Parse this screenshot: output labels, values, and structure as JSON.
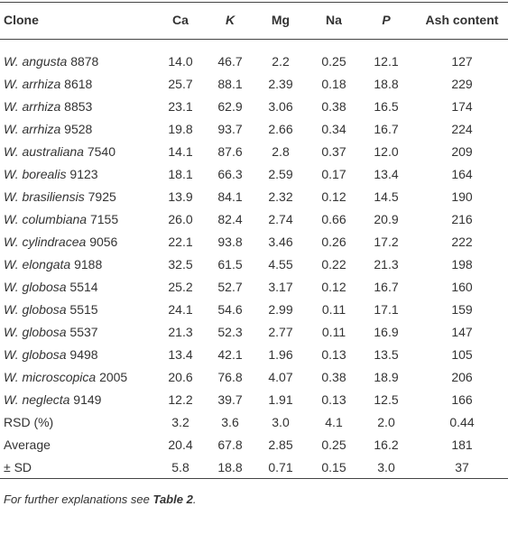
{
  "table": {
    "header": [
      "Clone",
      "Ca",
      "K",
      "Mg",
      "Na",
      "P",
      "Ash content"
    ],
    "rows": [
      {
        "species": "W. angusta",
        "id": "8878",
        "values": [
          "14.0",
          "46.7",
          "2.2",
          "0.25",
          "12.1",
          "127"
        ]
      },
      {
        "species": "W. arrhiza",
        "id": "8618",
        "values": [
          "25.7",
          "88.1",
          "2.39",
          "0.18",
          "18.8",
          "229"
        ]
      },
      {
        "species": "W. arrhiza",
        "id": "8853",
        "values": [
          "23.1",
          "62.9",
          "3.06",
          "0.38",
          "16.5",
          "174"
        ]
      },
      {
        "species": "W. arrhiza",
        "id": "9528",
        "values": [
          "19.8",
          "93.7",
          "2.66",
          "0.34",
          "16.7",
          "224"
        ]
      },
      {
        "species": "W. australiana",
        "id": "7540",
        "values": [
          "14.1",
          "87.6",
          "2.8",
          "0.37",
          "12.0",
          "209"
        ]
      },
      {
        "species": "W. borealis",
        "id": "9123",
        "values": [
          "18.1",
          "66.3",
          "2.59",
          "0.17",
          "13.4",
          "164"
        ]
      },
      {
        "species": "W. brasiliensis",
        "id": "7925",
        "values": [
          "13.9",
          "84.1",
          "2.32",
          "0.12",
          "14.5",
          "190"
        ]
      },
      {
        "species": "W. columbiana",
        "id": "7155",
        "values": [
          "26.0",
          "82.4",
          "2.74",
          "0.66",
          "20.9",
          "216"
        ]
      },
      {
        "species": "W. cylindracea",
        "id": "9056",
        "values": [
          "22.1",
          "93.8",
          "3.46",
          "0.26",
          "17.2",
          "222"
        ]
      },
      {
        "species": "W. elongata",
        "id": "9188",
        "values": [
          "32.5",
          "61.5",
          "4.55",
          "0.22",
          "21.3",
          "198"
        ]
      },
      {
        "species": "W. globosa",
        "id": "5514",
        "values": [
          "25.2",
          "52.7",
          "3.17",
          "0.12",
          "16.7",
          "160"
        ]
      },
      {
        "species": "W. globosa",
        "id": "5515",
        "values": [
          "24.1",
          "54.6",
          "2.99",
          "0.11",
          "17.1",
          "159"
        ]
      },
      {
        "species": "W. globosa",
        "id": "5537",
        "values": [
          "21.3",
          "52.3",
          "2.77",
          "0.11",
          "16.9",
          "147"
        ]
      },
      {
        "species": "W. globosa",
        "id": "9498",
        "values": [
          "13.4",
          "42.1",
          "1.96",
          "0.13",
          "13.5",
          "105"
        ]
      },
      {
        "species": "W. microscopica",
        "id": "2005",
        "values": [
          "20.6",
          "76.8",
          "4.07",
          "0.38",
          "18.9",
          "206"
        ]
      },
      {
        "species": "W. neglecta",
        "id": "9149",
        "values": [
          "12.2",
          "39.7",
          "1.91",
          "0.13",
          "12.5",
          "166"
        ]
      }
    ],
    "summary": [
      {
        "label": "RSD (%)",
        "values": [
          "3.2",
          "3.6",
          "3.0",
          "4.1",
          "2.0",
          "0.44"
        ]
      },
      {
        "label": "Average",
        "values": [
          "20.4",
          "67.8",
          "2.85",
          "0.25",
          "16.2",
          "181"
        ]
      },
      {
        "label": "± SD",
        "values": [
          "5.8",
          "18.8",
          "0.71",
          "0.15",
          "3.0",
          "37"
        ]
      }
    ]
  },
  "footnote": {
    "text": "For further explanations see ",
    "ref": "Table 2",
    "end": "."
  }
}
